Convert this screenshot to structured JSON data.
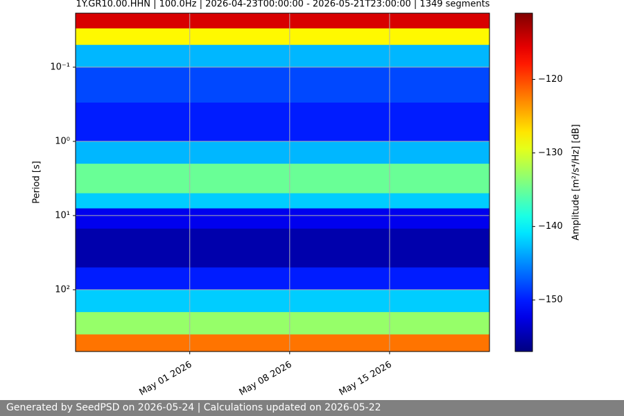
{
  "chart_data": {
    "type": "spectrogram",
    "title": "1Y.GR10.00.HHN | 100.0Hz | 2026-04-23T00:00:00 - 2026-05-21T23:00:00 | 1349 segments",
    "y_label": "Period [s]",
    "colorbar_label": "Amplitude [m²/s⁴/Hz] [dB]",
    "log_y": true,
    "y_inverted": true,
    "grid": true,
    "colormap": "jet",
    "xlim": [
      "2026-04-23",
      "2026-05-22"
    ],
    "xticks": [
      {
        "value": "2026-05-01",
        "label": "May 01 2026"
      },
      {
        "value": "2026-05-08",
        "label": "May 08 2026"
      },
      {
        "value": "2026-05-15",
        "label": "May 15 2026"
      }
    ],
    "ylim": [
      0.0187,
      680
    ],
    "yticks": [
      {
        "value": 0.1,
        "label": "10⁻¹"
      },
      {
        "value": 1,
        "label": "10⁰"
      },
      {
        "value": 10,
        "label": "10¹"
      },
      {
        "value": 100,
        "label": "10²"
      }
    ],
    "clim": [
      -157,
      -111
    ],
    "cticks": [
      {
        "value": -120,
        "label": "−120"
      },
      {
        "value": -130,
        "label": "−130"
      },
      {
        "value": -140,
        "label": "−140"
      },
      {
        "value": -150,
        "label": "−150"
      }
    ],
    "period_bins": [
      0.0187,
      0.03,
      0.05,
      0.1,
      0.3,
      1,
      2,
      5,
      8,
      15,
      50,
      100,
      200,
      400,
      680
    ],
    "values": [
      -115,
      -128,
      -143,
      -148,
      -150,
      -143,
      -135,
      -142,
      -152,
      -155,
      -150,
      -142,
      -133,
      -122
    ],
    "footer": "Generated by SeedPSD on 2026-05-24 | Calculations updated on 2026-05-22"
  }
}
